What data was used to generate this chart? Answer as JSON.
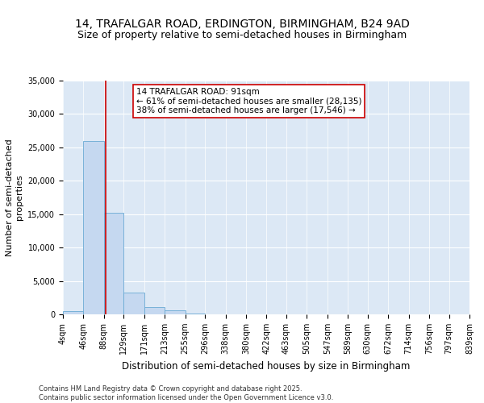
{
  "title": "14, TRAFALGAR ROAD, ERDINGTON, BIRMINGHAM, B24 9AD",
  "subtitle": "Size of property relative to semi-detached houses in Birmingham",
  "xlabel": "Distribution of semi-detached houses by size in Birmingham",
  "ylabel": "Number of semi-detached\nproperties",
  "bin_edges": [
    4,
    46,
    88,
    129,
    171,
    213,
    255,
    296,
    338,
    380,
    422,
    463,
    505,
    547,
    589,
    630,
    672,
    714,
    756,
    797,
    839
  ],
  "bar_heights": [
    500,
    26000,
    15200,
    3300,
    1100,
    600,
    100,
    50,
    20,
    10,
    5,
    3,
    2,
    1,
    1,
    0,
    0,
    0,
    0,
    0
  ],
  "bar_color": "#c5d8f0",
  "bar_edgecolor": "#6aaad4",
  "bg_color": "#dce8f5",
  "property_size": 91,
  "red_line_color": "#cc0000",
  "annotation_text": "14 TRAFALGAR ROAD: 91sqm\n← 61% of semi-detached houses are smaller (28,135)\n38% of semi-detached houses are larger (17,546) →",
  "annotation_box_color": "#ffffff",
  "annotation_box_edgecolor": "#cc0000",
  "ylim": [
    0,
    35000
  ],
  "yticks": [
    0,
    5000,
    10000,
    15000,
    20000,
    25000,
    30000,
    35000
  ],
  "footer": "Contains HM Land Registry data © Crown copyright and database right 2025.\nContains public sector information licensed under the Open Government Licence v3.0.",
  "title_fontsize": 10,
  "subtitle_fontsize": 9,
  "tick_label_fontsize": 7,
  "ylabel_fontsize": 8,
  "xlabel_fontsize": 8.5,
  "annotation_fontsize": 7.5,
  "footer_fontsize": 6
}
